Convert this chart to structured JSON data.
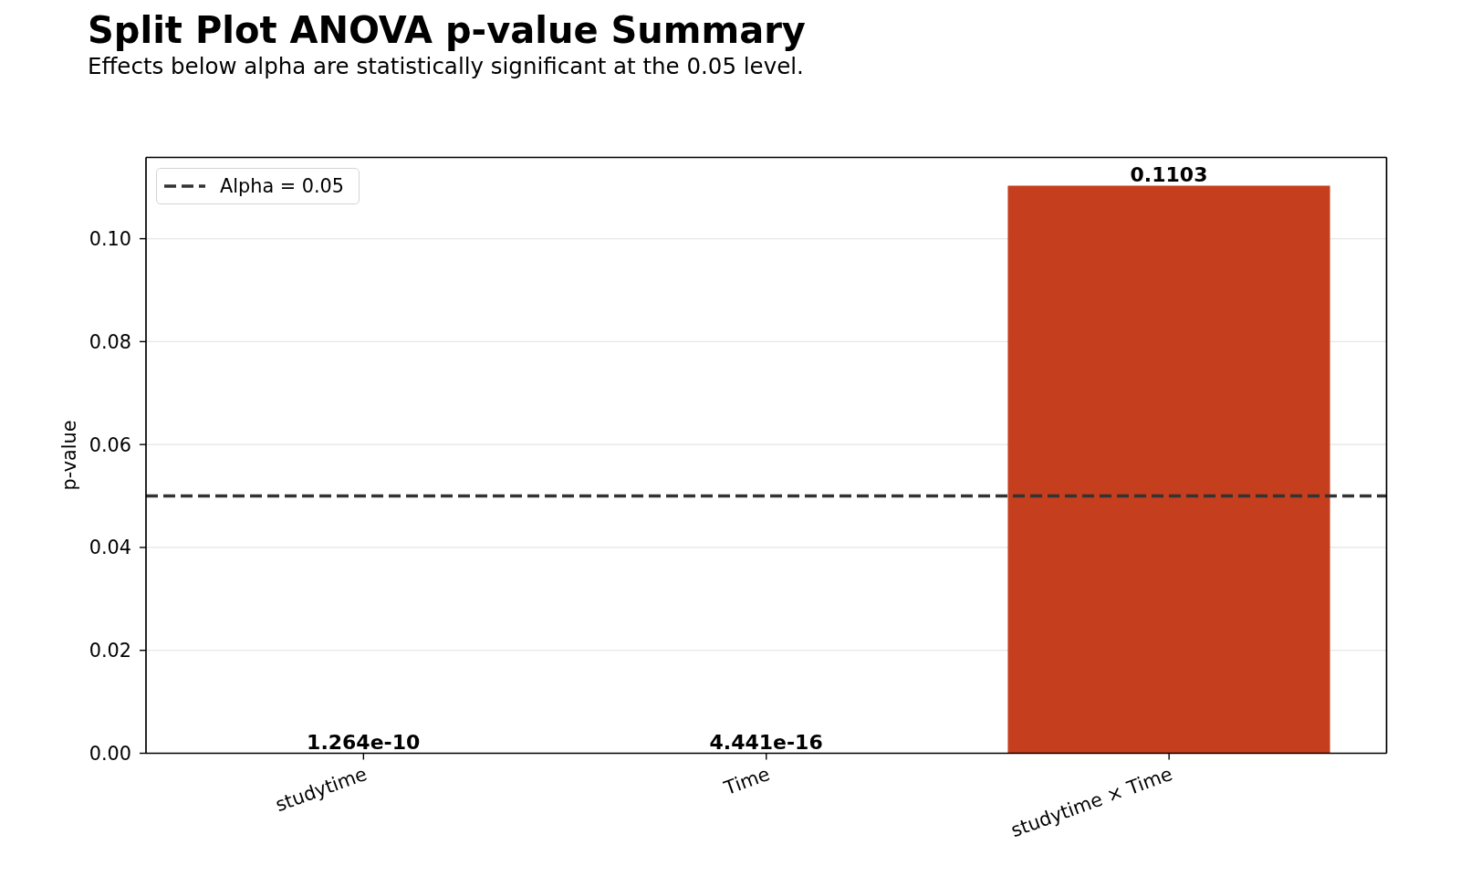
{
  "chart_data": {
    "type": "bar",
    "title": "Split Plot ANOVA p-value Summary",
    "subtitle": "Effects below alpha are statistically significant at the 0.05 level.",
    "ylabel": "p-value",
    "categories": [
      "studytime",
      "Time",
      "studytime × Time"
    ],
    "values": [
      1.264e-10,
      4.441e-16,
      0.1103
    ],
    "color": "#c53e1e",
    "ylim": [
      0,
      0.1158
    ],
    "yticks": [
      {
        "value": 0,
        "label": "0.00"
      },
      0.02,
      0.04,
      0.06,
      0.08,
      {
        "value": 0.1,
        "label": "0.10"
      }
    ],
    "grid": "y",
    "legend": "top left",
    "data_labels": true,
    "ref_lines": [
      {
        "axis": "y",
        "value": 0.05,
        "label": "Alpha = 0.05",
        "color": "#333333",
        "line_style": "dashed"
      }
    ]
  }
}
